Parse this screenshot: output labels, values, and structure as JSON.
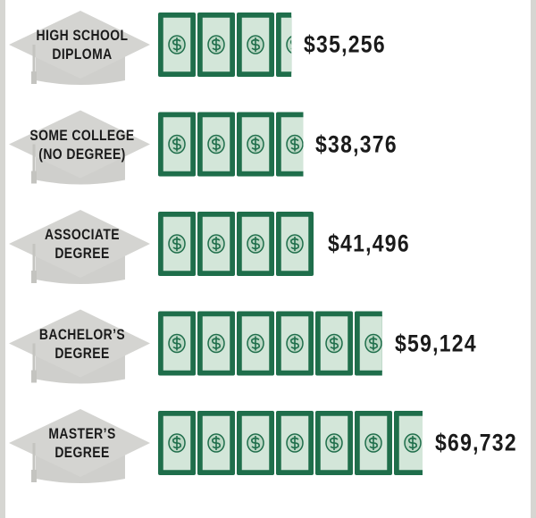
{
  "chart_data": {
    "type": "bar",
    "categories": [
      "HIGH SCHOOL\nDIPLOMA",
      "SOME COLLEGE\n(NO DEGREE)",
      "ASSOCIATE\nDEGREE",
      "BACHELOR’S\nDEGREE",
      "MASTER’S\nDEGREE"
    ],
    "values": [
      35256,
      38376,
      41496,
      59124,
      69732
    ],
    "value_labels": [
      "$35,256",
      "$38,376",
      "$41,496",
      "$59,124",
      "$69,732"
    ],
    "color": "#1f6e4b"
  }
}
